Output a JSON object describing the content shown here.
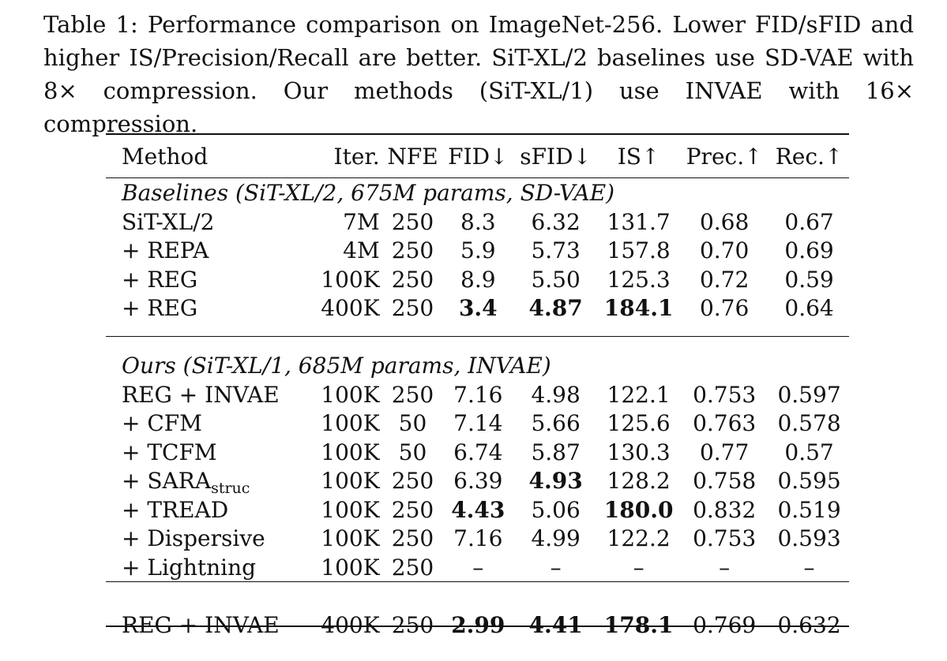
{
  "caption": {
    "label": "Table 1:",
    "text": "Performance comparison on ImageNet-256. Lower FID/sFID and higher IS/Precision/Recall are better. SiT-XL/2 baselines use SD-VAE with 8× compression. Our methods (SiT-XL/1) use INVAE with 16× compression."
  },
  "table": {
    "headers": [
      "Method",
      "Iter.",
      "NFE",
      "FID↓",
      "sFID↓",
      "IS↑",
      "Prec.↑",
      "Rec.↑"
    ],
    "sections": [
      {
        "title": "Baselines (SiT-XL/2, 675M params, SD-VAE)",
        "rows": [
          {
            "method": "SiT-XL/2",
            "iter": "7M",
            "nfe": "250",
            "fid": "8.3",
            "sfid": "6.32",
            "is": "131.7",
            "prec": "0.68",
            "rec": "0.67"
          },
          {
            "method": "+ REPA",
            "iter": "4M",
            "nfe": "250",
            "fid": "5.9",
            "sfid": "5.73",
            "is": "157.8",
            "prec": "0.70",
            "rec": "0.69"
          },
          {
            "method": "+ REG",
            "iter": "100K",
            "nfe": "250",
            "fid": "8.9",
            "sfid": "5.50",
            "is": "125.3",
            "prec": "0.72",
            "rec": "0.59"
          },
          {
            "method": "+ REG",
            "iter": "400K",
            "nfe": "250",
            "fid": "3.4",
            "sfid": "4.87",
            "is": "184.1",
            "prec": "0.76",
            "rec": "0.64"
          }
        ]
      },
      {
        "title": "Ours (SiT-XL/1, 685M params, INVAE)",
        "rows": [
          {
            "method": "REG + INVAE",
            "iter": "100K",
            "nfe": "250",
            "fid": "7.16",
            "sfid": "4.98",
            "is": "122.1",
            "prec": "0.753",
            "rec": "0.597"
          },
          {
            "method": "+ CFM",
            "iter": "100K",
            "nfe": "50",
            "fid": "7.14",
            "sfid": "5.66",
            "is": "125.6",
            "prec": "0.763",
            "rec": "0.578"
          },
          {
            "method": "+ TCFM",
            "iter": "100K",
            "nfe": "50",
            "fid": "6.74",
            "sfid": "5.87",
            "is": "130.3",
            "prec": "0.77",
            "rec": "0.57"
          },
          {
            "method": "+ SARA",
            "method_sub": "struc",
            "iter": "100K",
            "nfe": "250",
            "fid": "6.39",
            "sfid": "4.93",
            "is": "128.2",
            "prec": "0.758",
            "rec": "0.595"
          },
          {
            "method": "+ TREAD",
            "iter": "100K",
            "nfe": "250",
            "fid": "4.43",
            "sfid": "5.06",
            "is": "180.0",
            "prec": "0.832",
            "rec": "0.519"
          },
          {
            "method": "+ Dispersive",
            "iter": "100K",
            "nfe": "250",
            "fid": "7.16",
            "sfid": "4.99",
            "is": "122.2",
            "prec": "0.753",
            "rec": "0.593"
          },
          {
            "method": "+ Lightning",
            "iter": "100K",
            "nfe": "250",
            "fid": "–",
            "sfid": "–",
            "is": "–",
            "prec": "–",
            "rec": "–"
          }
        ]
      }
    ],
    "final_row": {
      "method": "REG + INVAE",
      "iter": "400K",
      "nfe": "250",
      "fid": "2.99",
      "sfid": "4.41",
      "is": "178.1",
      "prec": "0.769",
      "rec": "0.632"
    }
  }
}
